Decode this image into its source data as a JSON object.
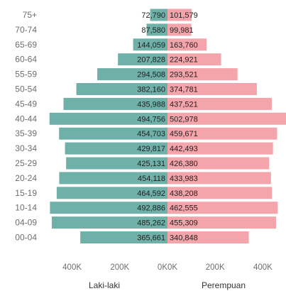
{
  "chart_data": {
    "type": "bar",
    "orientation": "horizontal-population-pyramid",
    "categories": [
      "75+",
      "70-74",
      "65-69",
      "60-64",
      "55-59",
      "50-54",
      "45-49",
      "40-44",
      "35-39",
      "30-34",
      "25-29",
      "20-24",
      "15-19",
      "10-14",
      "04-09",
      "00-04"
    ],
    "series": [
      {
        "name": "Laki-laki",
        "color": "#6fb1a8",
        "values": [
          72790,
          87580,
          144059,
          207828,
          294508,
          382160,
          435988,
          494756,
          454703,
          429817,
          425131,
          454118,
          464592,
          492886,
          485262,
          365661
        ],
        "labels": [
          "72,790",
          "87,580",
          "144,059",
          "207,828",
          "294,508",
          "382,160",
          "435,988",
          "494,756",
          "454,703",
          "429,817",
          "425,131",
          "454,118",
          "464,592",
          "492,886",
          "485,262",
          "365,661"
        ]
      },
      {
        "name": "Perempuan",
        "color": "#f4a4ab",
        "values": [
          101579,
          99981,
          163760,
          224921,
          293521,
          374781,
          437521,
          502978,
          459671,
          442493,
          426380,
          433983,
          438208,
          462555,
          455309,
          340848
        ],
        "labels": [
          "101,579",
          "99,981",
          "163,760",
          "224,921",
          "293,521",
          "374,781",
          "437,521",
          "502,978",
          "459,671",
          "442,493",
          "426,380",
          "433,983",
          "438,208",
          "462,555",
          "455,309",
          "340,848"
        ]
      }
    ],
    "x_ticks_left": [
      "400K",
      "200K",
      "0K"
    ],
    "x_ticks_right": [
      "0K",
      "200K",
      "400K"
    ],
    "xlim": [
      0,
      500000
    ],
    "grid": false
  }
}
